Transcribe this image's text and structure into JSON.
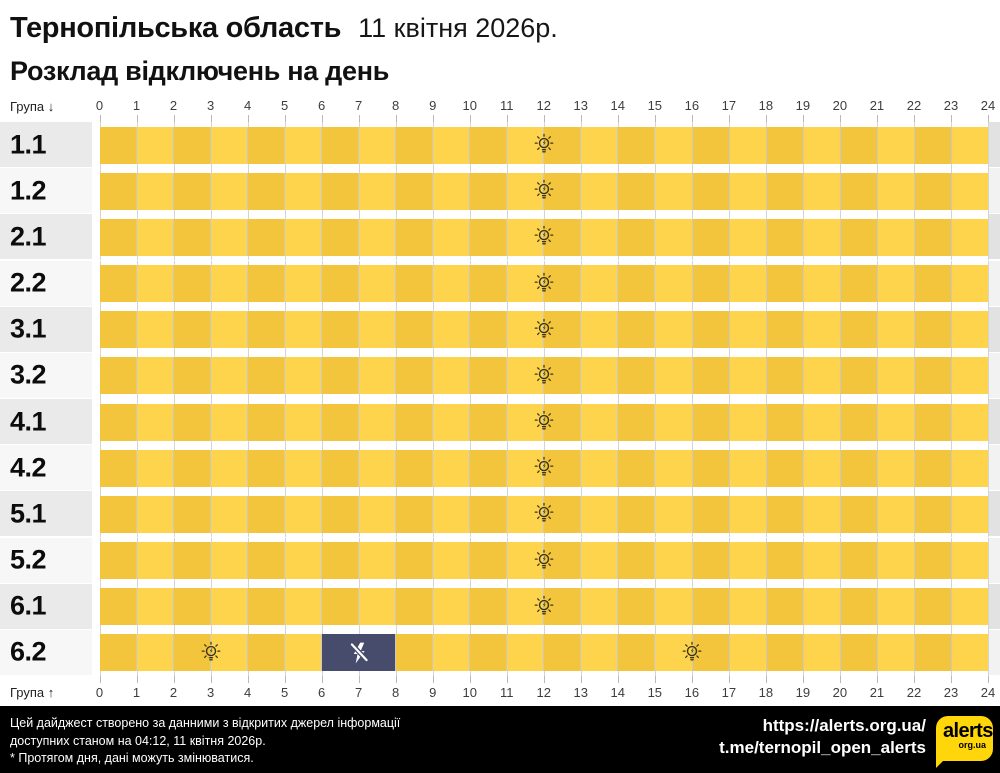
{
  "title": {
    "region": "Тернопільська область",
    "date": "11 квітня 2026р.",
    "subtitle": "Розклад відключень на день"
  },
  "axis": {
    "group_top": "Група ↓",
    "group_bottom": "Група ↑",
    "hours": [
      "0",
      "1",
      "2",
      "3",
      "4",
      "5",
      "6",
      "7",
      "8",
      "9",
      "10",
      "11",
      "12",
      "13",
      "14",
      "15",
      "16",
      "17",
      "18",
      "19",
      "20",
      "21",
      "22",
      "23",
      "24"
    ]
  },
  "colors": {
    "power_on_dark": "#F2C53D",
    "power_on_light": "#FFD44D",
    "power_off": "#474B6C",
    "logo_yellow": "#FFD60A"
  },
  "chart_data": {
    "type": "heatmap",
    "title": "Розклад відключень на день",
    "region": "Тернопільська область",
    "date": "11 квітня 2026р.",
    "x_range": [
      0,
      24
    ],
    "rows": [
      {
        "group": "1.1",
        "on": [
          [
            0,
            24
          ]
        ],
        "off": [],
        "markers": [
          {
            "hour": 12,
            "icon": "bulb-on"
          }
        ]
      },
      {
        "group": "1.2",
        "on": [
          [
            0,
            24
          ]
        ],
        "off": [],
        "markers": [
          {
            "hour": 12,
            "icon": "bulb-on"
          }
        ]
      },
      {
        "group": "2.1",
        "on": [
          [
            0,
            24
          ]
        ],
        "off": [],
        "markers": [
          {
            "hour": 12,
            "icon": "bulb-on"
          }
        ]
      },
      {
        "group": "2.2",
        "on": [
          [
            0,
            24
          ]
        ],
        "off": [],
        "markers": [
          {
            "hour": 12,
            "icon": "bulb-on"
          }
        ]
      },
      {
        "group": "3.1",
        "on": [
          [
            0,
            24
          ]
        ],
        "off": [],
        "markers": [
          {
            "hour": 12,
            "icon": "bulb-on"
          }
        ]
      },
      {
        "group": "3.2",
        "on": [
          [
            0,
            24
          ]
        ],
        "off": [],
        "markers": [
          {
            "hour": 12,
            "icon": "bulb-on"
          }
        ]
      },
      {
        "group": "4.1",
        "on": [
          [
            0,
            24
          ]
        ],
        "off": [],
        "markers": [
          {
            "hour": 12,
            "icon": "bulb-on"
          }
        ]
      },
      {
        "group": "4.2",
        "on": [
          [
            0,
            24
          ]
        ],
        "off": [],
        "markers": [
          {
            "hour": 12,
            "icon": "bulb-on"
          }
        ]
      },
      {
        "group": "5.1",
        "on": [
          [
            0,
            24
          ]
        ],
        "off": [],
        "markers": [
          {
            "hour": 12,
            "icon": "bulb-on"
          }
        ]
      },
      {
        "group": "5.2",
        "on": [
          [
            0,
            24
          ]
        ],
        "off": [],
        "markers": [
          {
            "hour": 12,
            "icon": "bulb-on"
          }
        ]
      },
      {
        "group": "6.1",
        "on": [
          [
            0,
            24
          ]
        ],
        "off": [],
        "markers": [
          {
            "hour": 12,
            "icon": "bulb-on"
          }
        ]
      },
      {
        "group": "6.2",
        "on": [
          [
            0,
            6
          ],
          [
            8,
            24
          ]
        ],
        "off": [
          [
            6,
            8
          ]
        ],
        "markers": [
          {
            "hour": 3,
            "icon": "bulb-on"
          },
          {
            "hour": 7,
            "icon": "flash-off"
          },
          {
            "hour": 16,
            "icon": "bulb-on"
          }
        ]
      }
    ]
  },
  "footer": {
    "note_lines": [
      "Цей дайджест створено за данними з відкритих джерел інформації",
      "доступних станом на 04:12, 11 квітня 2026р.",
      "* Протягом дня, дані можуть змінюватися."
    ],
    "links": [
      "https://alerts.org.ua/",
      "t.me/ternopil_open_alerts"
    ],
    "logo": {
      "name": "alerts",
      "suffix": "org.ua"
    }
  }
}
